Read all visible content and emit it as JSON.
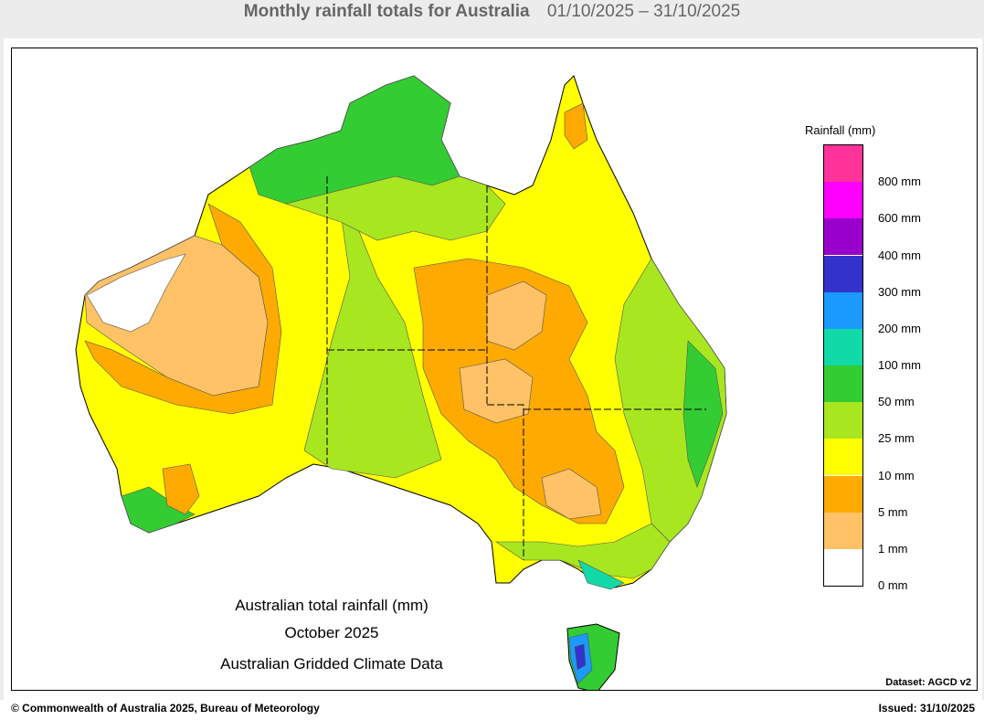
{
  "header": {
    "title": "Monthly rainfall totals for Australia",
    "date_range": "01/10/2025 – 31/10/2025"
  },
  "legend": {
    "title": "Rainfall (mm)",
    "bands": [
      {
        "label": "800 mm",
        "color": "#ff3399"
      },
      {
        "label": "600 mm",
        "color": "#ff00ff"
      },
      {
        "label": "400 mm",
        "color": "#9900cc"
      },
      {
        "label": "300 mm",
        "color": "#3333cc"
      },
      {
        "label": "200 mm",
        "color": "#1a9aff"
      },
      {
        "label": "100 mm",
        "color": "#12d9a8"
      },
      {
        "label": "50 mm",
        "color": "#33cc33"
      },
      {
        "label": "25 mm",
        "color": "#a8e620"
      },
      {
        "label": "10 mm",
        "color": "#ffff00"
      },
      {
        "label": "5 mm",
        "color": "#ffaa00"
      },
      {
        "label": "1 mm",
        "color": "#ffc266"
      },
      {
        "label": "0 mm",
        "color": "#ffffff"
      }
    ]
  },
  "map": {
    "caption_line1": "Australian total rainfall (mm)",
    "caption_line2": "October 2025",
    "caption_line3": "Australian Gridded Climate Data",
    "dataset": "Dataset: AGCD v2"
  },
  "footer": {
    "copyright": "© Commonwealth of Australia 2025, Bureau of Meteorology",
    "issued": "Issued: 31/10/2025"
  }
}
